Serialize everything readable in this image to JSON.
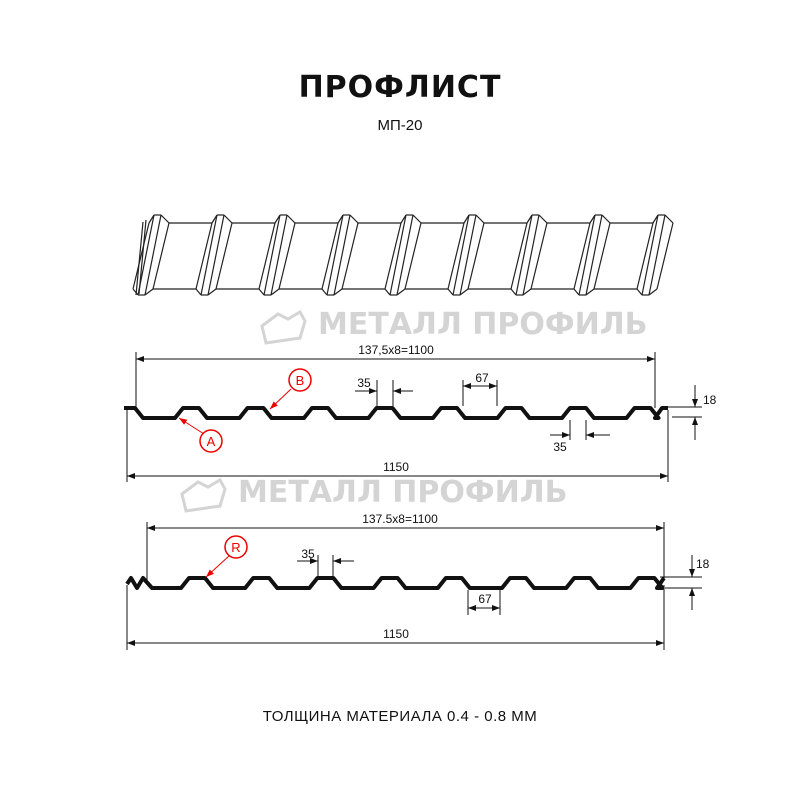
{
  "header": {
    "title": "ПРОФЛИСТ",
    "subtitle": "МП-20"
  },
  "watermark": {
    "text": "МЕТАЛЛ ПРОФИЛЬ"
  },
  "profile_1": {
    "dim_top": "137,5x8=1100",
    "dim_bottom": "1150",
    "dim_crest": "35",
    "dim_pitch_top": "67",
    "dim_valley": "35",
    "dim_height": "18",
    "label_a": "A",
    "label_b": "B"
  },
  "profile_2": {
    "dim_top": "137.5x8=1100",
    "dim_bottom": "1150",
    "dim_crest": "35",
    "dim_pitch": "67",
    "dim_height": "18",
    "label_r": "R"
  },
  "footer": {
    "thickness": "ТОЛЩИНА МАТЕРИАЛА 0.4 - 0.8 ММ"
  },
  "colors": {
    "profile": "#111111",
    "callout": "#e00000",
    "watermark": "#d4d4d4"
  }
}
